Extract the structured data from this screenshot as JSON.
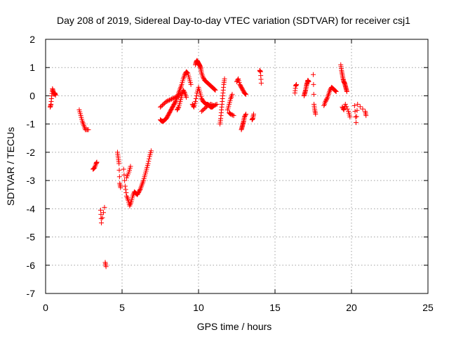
{
  "chart_data": {
    "type": "scatter",
    "title": "Day 208 of 2019, Sidereal Day-to-day VTEC variation (SDTVAR) for receiver csj1",
    "xlabel": "GPS time / hours",
    "ylabel": "SDTVAR / TECUs",
    "xlim": [
      0,
      25
    ],
    "ylim": [
      -7,
      2
    ],
    "xticks": [
      0,
      5,
      10,
      15,
      20,
      25
    ],
    "yticks": [
      -7,
      -6,
      -5,
      -4,
      -3,
      -2,
      -1,
      0,
      1,
      2
    ],
    "grid": true,
    "marker": "plus",
    "color": "#ff0000",
    "segments": [
      {
        "x": [
          0.3,
          0.35,
          0.4,
          0.45,
          0.5,
          0.55,
          0.6,
          0.65
        ],
        "y": [
          -0.4,
          -0.3,
          0.0,
          0.25,
          0.15,
          0.05,
          0.1,
          0.02
        ]
      },
      {
        "x": [
          2.2,
          2.3,
          2.4,
          2.5,
          2.6,
          2.8
        ],
        "y": [
          -0.5,
          -0.7,
          -0.9,
          -1.05,
          -1.2,
          -1.2
        ]
      },
      {
        "x": [
          3.1,
          3.2,
          3.3,
          3.35
        ],
        "y": [
          -2.6,
          -2.55,
          -2.4,
          -2.35
        ]
      },
      {
        "x": [
          3.6,
          3.65,
          3.85
        ],
        "y": [
          -4.05,
          -4.5,
          -3.95
        ]
      },
      {
        "x": [
          3.9,
          3.95
        ],
        "y": [
          -5.9,
          -6.05
        ]
      },
      {
        "x": [
          4.7,
          4.75,
          4.8,
          4.85,
          4.9
        ],
        "y": [
          -2.0,
          -2.2,
          -2.4,
          -3.1,
          -3.25
        ]
      },
      {
        "x": [
          5.1,
          5.2,
          5.3,
          5.4,
          5.5,
          5.6,
          5.7,
          5.8,
          5.9,
          6.0,
          6.1,
          6.2,
          6.3,
          6.4,
          6.5,
          6.6,
          6.7,
          6.8,
          6.9
        ],
        "y": [
          -2.6,
          -3.2,
          -3.55,
          -3.7,
          -3.9,
          -3.75,
          -3.55,
          -3.4,
          -3.45,
          -3.5,
          -3.4,
          -3.3,
          -3.15,
          -3.0,
          -2.8,
          -2.6,
          -2.4,
          -2.15,
          -1.95
        ]
      },
      {
        "x": [
          5.3,
          5.45,
          5.55
        ],
        "y": [
          -2.9,
          -2.7,
          -2.5
        ]
      },
      {
        "x": [
          7.5,
          7.6,
          7.7,
          7.8,
          7.9,
          8.0,
          8.1,
          8.2,
          8.3,
          8.4,
          8.5,
          8.6,
          8.7,
          8.8,
          8.9,
          9.0,
          9.1,
          9.2,
          9.3,
          9.4,
          9.5
        ],
        "y": [
          -0.85,
          -0.9,
          -0.9,
          -0.85,
          -0.8,
          -0.7,
          -0.6,
          -0.5,
          -0.4,
          -0.3,
          -0.2,
          -0.05,
          0.1,
          0.25,
          0.4,
          0.6,
          0.75,
          0.85,
          0.8,
          0.6,
          0.4
        ]
      },
      {
        "x": [
          7.5,
          7.7,
          7.9,
          8.1,
          8.3,
          8.5,
          8.7,
          8.9
        ],
        "y": [
          -0.4,
          -0.3,
          -0.2,
          -0.15,
          -0.1,
          -0.05,
          0.0,
          0.1
        ]
      },
      {
        "x": [
          8.6,
          8.7,
          8.8,
          8.9,
          9.0,
          9.1,
          9.2
        ],
        "y": [
          -0.5,
          -0.4,
          -0.2,
          0.0,
          0.2,
          0.1,
          -0.05
        ]
      },
      {
        "x": [
          9.8,
          9.85,
          9.9,
          9.95,
          10.0,
          10.05,
          10.1,
          10.15,
          10.2,
          10.3,
          10.4,
          10.5,
          10.6,
          10.7,
          10.8,
          10.9,
          11.0,
          11.1
        ],
        "y": [
          1.1,
          1.2,
          1.25,
          1.2,
          1.15,
          1.1,
          1.05,
          0.95,
          0.8,
          0.65,
          0.55,
          0.5,
          0.45,
          0.4,
          0.35,
          0.3,
          0.25,
          0.2
        ]
      },
      {
        "x": [
          9.6,
          9.7,
          9.8,
          9.9,
          10.0,
          10.1,
          10.2,
          10.3,
          10.4,
          10.5,
          10.6,
          10.7,
          10.8,
          10.9,
          11.0
        ],
        "y": [
          -0.3,
          -0.4,
          -0.2,
          0.1,
          0.3,
          0.1,
          -0.1,
          -0.2,
          -0.25,
          -0.3,
          -0.3,
          -0.35,
          -0.4,
          -0.4,
          -0.35
        ]
      },
      {
        "x": [
          10.2,
          10.4,
          10.6,
          10.8,
          11.0,
          11.2
        ],
        "y": [
          -0.55,
          -0.45,
          -0.35,
          -0.3,
          -0.35,
          -0.3
        ]
      },
      {
        "x": [
          11.4,
          11.45,
          11.5,
          11.55,
          11.6,
          11.65,
          11.7
        ],
        "y": [
          -1.0,
          -0.8,
          -0.5,
          -0.2,
          0.1,
          0.4,
          0.6
        ]
      },
      {
        "x": [
          11.9,
          12.0,
          12.1,
          12.2
        ],
        "y": [
          -0.5,
          -0.3,
          -0.1,
          0.05
        ]
      },
      {
        "x": [
          12.0,
          12.1,
          12.3
        ],
        "y": [
          -0.6,
          -0.65,
          -0.7
        ]
      },
      {
        "x": [
          12.5,
          12.6,
          12.7,
          12.8,
          12.9,
          13.0,
          13.1
        ],
        "y": [
          0.5,
          0.6,
          0.4,
          0.3,
          0.2,
          0.1,
          0.05
        ]
      },
      {
        "x": [
          12.8,
          12.85,
          12.9,
          12.95,
          13.0,
          13.1
        ],
        "y": [
          -1.2,
          -1.1,
          -1.0,
          -0.9,
          -0.75,
          -0.65
        ]
      },
      {
        "x": [
          13.5,
          13.55,
          13.6
        ],
        "y": [
          -0.85,
          -0.8,
          -0.65
        ]
      },
      {
        "x": [
          14.0,
          14.05,
          14.1
        ],
        "y": [
          0.9,
          0.85,
          0.45
        ]
      },
      {
        "x": [
          16.3,
          16.35,
          16.4
        ],
        "y": [
          0.1,
          0.35,
          0.4
        ]
      },
      {
        "x": [
          16.9,
          16.95,
          17.0,
          17.05,
          17.1,
          17.15,
          17.2
        ],
        "y": [
          0.0,
          0.1,
          0.2,
          0.35,
          0.45,
          0.55,
          0.5
        ]
      },
      {
        "x": [
          17.5,
          17.55,
          17.6,
          17.65
        ],
        "y": [
          0.75,
          -0.3,
          -0.5,
          -0.65
        ]
      },
      {
        "x": [
          18.2,
          18.3,
          18.4,
          18.5,
          18.6,
          18.7,
          18.8,
          18.9,
          19.0
        ],
        "y": [
          -0.35,
          -0.2,
          -0.1,
          0.05,
          0.2,
          0.3,
          0.25,
          0.2,
          0.15
        ]
      },
      {
        "x": [
          19.3,
          19.35,
          19.4,
          19.45,
          19.5,
          19.55,
          19.6,
          19.65,
          19.7
        ],
        "y": [
          1.1,
          0.9,
          0.75,
          0.6,
          0.5,
          0.45,
          0.35,
          0.25,
          0.15
        ]
      },
      {
        "x": [
          19.4,
          19.5,
          19.6,
          19.8,
          19.9
        ],
        "y": [
          -0.4,
          -0.5,
          -0.3,
          -0.55,
          -0.75
        ]
      },
      {
        "x": [
          20.2,
          20.3,
          20.4,
          20.9,
          20.95
        ],
        "y": [
          -0.35,
          -0.95,
          -0.3,
          -0.55,
          -0.7
        ]
      }
    ]
  }
}
